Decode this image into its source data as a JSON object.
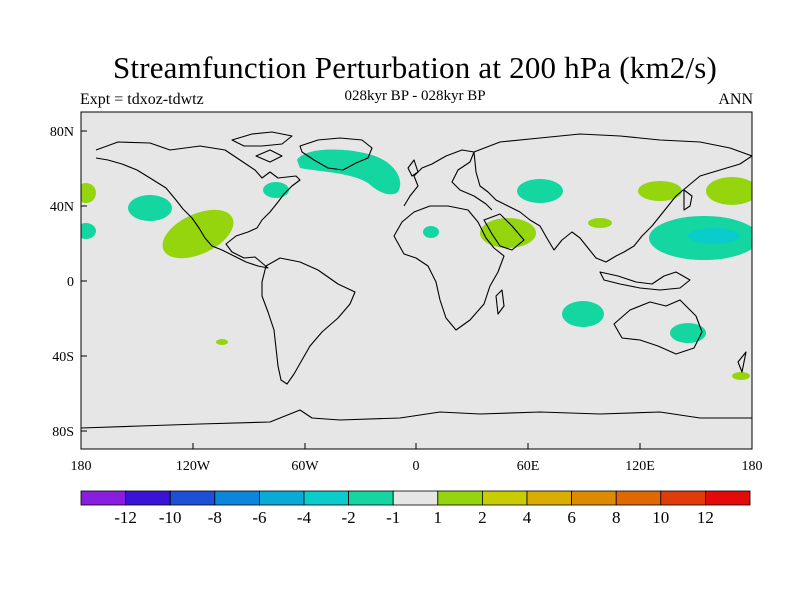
{
  "header": {
    "title": "Streamfunction Perturbation at 200 hPa (km2/s)",
    "subtitle": "028kyr BP - 028kyr BP",
    "left_label": "Expt = tdxoz-tdwtz",
    "right_label": "ANN"
  },
  "map": {
    "background_color": "#e6e6e6",
    "lat_ticks": [
      "80N",
      "40N",
      "0",
      "40S",
      "80S"
    ],
    "lon_ticks": [
      "180",
      "120W",
      "60W",
      "0",
      "60E",
      "120E",
      "180"
    ]
  },
  "colorbar": {
    "labels": [
      "-12",
      "-10",
      "-8",
      "-6",
      "-4",
      "-2",
      "-1",
      "1",
      "2",
      "4",
      "6",
      "8",
      "10",
      "12"
    ],
    "colors": [
      "#8a1ee0",
      "#3a14d6",
      "#1e4fd8",
      "#0a87dc",
      "#09a9d8",
      "#0acccc",
      "#13d6a0",
      "#e6e6e6",
      "#94d50e",
      "#c8cc00",
      "#d9ae00",
      "#de8a00",
      "#e06800",
      "#e03c0a",
      "#e40a0a"
    ]
  },
  "contours": {
    "negative_color": "#13d6a0",
    "positive_color": "#94d50e",
    "deep_negative_color": "#0acccc"
  }
}
